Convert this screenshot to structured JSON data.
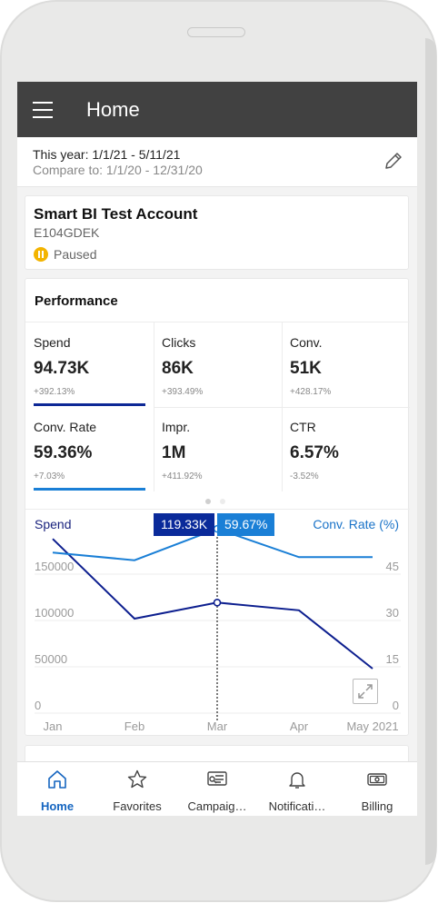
{
  "header": {
    "title": "Home"
  },
  "date_range": {
    "current": "This year: 1/1/21 - 5/11/21",
    "compare": "Compare to: 1/1/20 -  12/31/20"
  },
  "account": {
    "name": "Smart BI Test Account",
    "id": "E104GDEK",
    "status": "Paused"
  },
  "performance": {
    "title": "Performance",
    "metrics": [
      {
        "label": "Spend",
        "value": "94.73K",
        "change": "+392.13%",
        "selected_color": "#0d2896"
      },
      {
        "label": "Clicks",
        "value": "86K",
        "change": "+393.49%"
      },
      {
        "label": "Conv.",
        "value": "51K",
        "change": "+428.17%"
      },
      {
        "label": "Conv. Rate",
        "value": "59.36%",
        "change": "+7.03%",
        "selected_color": "#1a7fd6"
      },
      {
        "label": "Impr.",
        "value": "1M",
        "change": "+411.92%"
      },
      {
        "label": "CTR",
        "value": "6.57%",
        "change": "-3.52%"
      }
    ],
    "page_indicator": {
      "current": 1,
      "total": 2
    }
  },
  "chart_data": {
    "type": "line",
    "categories": [
      "Jan",
      "Feb",
      "Mar",
      "Apr",
      "May 2021"
    ],
    "left_axis": {
      "label": "Spend",
      "ticks": [
        "0",
        "50000",
        "100000",
        "150000"
      ],
      "ylim": [
        0,
        200000
      ]
    },
    "right_axis": {
      "label": "Conv. Rate (%)",
      "ticks": [
        "0",
        "15",
        "30",
        "45"
      ],
      "ylim": [
        0,
        60
      ]
    },
    "series": [
      {
        "name": "Spend",
        "axis": "left",
        "color": "#0d1f8f",
        "values": [
          188000,
          102000,
          119330,
          111000,
          48000
        ]
      },
      {
        "name": "Conv. Rate (%)",
        "axis": "right",
        "color": "#1a7fd6",
        "values": [
          52,
          49.5,
          59.67,
          50.5,
          50.5
        ]
      }
    ],
    "tooltip": {
      "index": 2,
      "spend": "119.33K",
      "rate": "59.67%"
    },
    "grid": true
  },
  "tabs": [
    {
      "label": "Home",
      "icon": "home-icon"
    },
    {
      "label": "Favorites",
      "icon": "star-icon"
    },
    {
      "label": "Campaig…",
      "icon": "campaigns-icon"
    },
    {
      "label": "Notificati…",
      "icon": "bell-icon"
    },
    {
      "label": "Billing",
      "icon": "billing-icon"
    }
  ]
}
